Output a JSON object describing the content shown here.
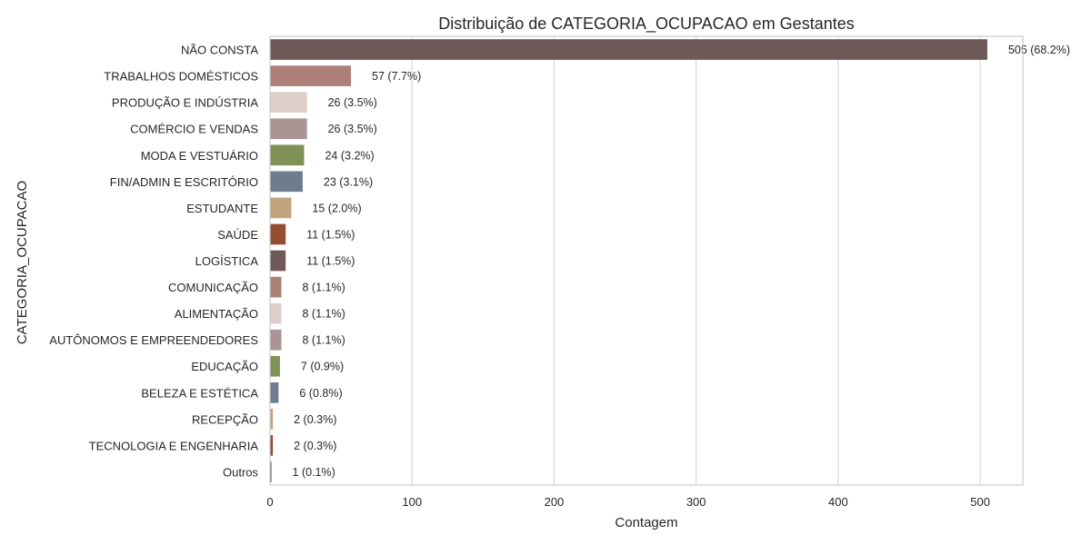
{
  "chart_data": {
    "type": "bar",
    "orientation": "horizontal",
    "title": "Distribuição de CATEGORIA_OCUPACAO em Gestantes",
    "xlabel": "Contagem",
    "ylabel": "CATEGORIA_OCUPACAO",
    "xlim": [
      0,
      530
    ],
    "xticks": [
      0,
      100,
      200,
      300,
      400,
      500
    ],
    "grid": true,
    "categories": [
      "NÃO CONSTA",
      "TRABALHOS DOMÉSTICOS",
      "PRODUÇÃO E INDÚSTRIA",
      "COMÉRCIO E VENDAS",
      "MODA E VESTUÁRIO",
      "FIN/ADMIN E ESCRITÓRIO",
      "ESTUDANTE",
      "SAÚDE",
      "LOGÍSTICA",
      "COMUNICAÇÃO",
      "ALIMENTAÇÃO",
      "AUTÔNOMOS E EMPREENDEDORES",
      "EDUCAÇÃO",
      "BELEZA E ESTÉTICA",
      "RECEPÇÃO",
      "TECNOLOGIA E ENGENHARIA",
      "Outros"
    ],
    "values": [
      505,
      57,
      26,
      26,
      24,
      23,
      15,
      11,
      11,
      8,
      8,
      8,
      7,
      6,
      2,
      2,
      1
    ],
    "data_labels": [
      "505 (68.2%)",
      "57 (7.7%)",
      "26 (3.5%)",
      "26 (3.5%)",
      "24 (3.2%)",
      "23 (3.1%)",
      "15 (2.0%)",
      "11 (1.5%)",
      "11 (1.5%)",
      "8 (1.1%)",
      "8 (1.1%)",
      "8 (1.1%)",
      "7 (0.9%)",
      "6 (0.8%)",
      "2 (0.3%)",
      "2 (0.3%)",
      "1 (0.1%)"
    ],
    "colors": [
      "#6f5858",
      "#ac7f79",
      "#dfcdc9",
      "#aa9494",
      "#7f9157",
      "#6e7d8c",
      "#c3a37e",
      "#934d31",
      "#6f5858",
      "#ac7f79",
      "#dfcdc9",
      "#aa9494",
      "#7f9157",
      "#6e7d8c",
      "#c3a37e",
      "#934d31",
      "#6f5858"
    ]
  }
}
